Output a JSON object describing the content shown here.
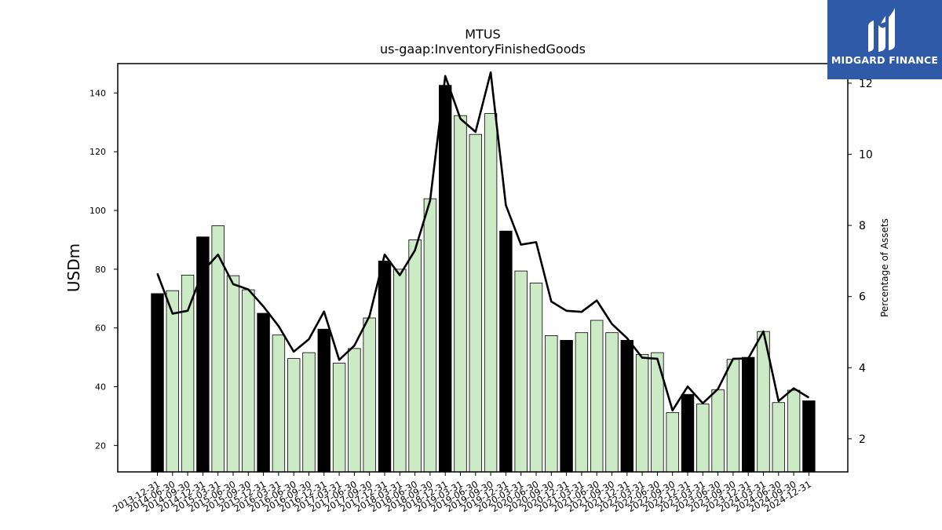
{
  "chart_data": {
    "type": "bar",
    "title": "MTUS",
    "subtitle": "us-gaap:InventoryFinishedGoods",
    "ylabel": "USDm",
    "y2label": "Percentage of Assets",
    "ylim": [
      11,
      150
    ],
    "y2lim": [
      1.07,
      12.55
    ],
    "yticks": [
      20,
      40,
      60,
      80,
      100,
      120,
      140
    ],
    "y2ticks": [
      2,
      4,
      6,
      8,
      10,
      12
    ],
    "categories": [
      "2013-12-31",
      "2014-06-30",
      "2014-09-30",
      "2014-12-31",
      "2015-03-31",
      "2015-06-30",
      "2015-09-30",
      "2015-12-31",
      "2016-03-31",
      "2016-06-30",
      "2016-09-30",
      "2016-12-31",
      "2017-03-31",
      "2017-06-30",
      "2017-09-30",
      "2017-12-31",
      "2018-03-31",
      "2018-06-30",
      "2018-09-30",
      "2018-12-31",
      "2019-03-31",
      "2019-06-30",
      "2019-09-30",
      "2019-12-31",
      "2020-03-31",
      "2020-06-30",
      "2020-09-30",
      "2020-12-31",
      "2021-03-31",
      "2021-06-30",
      "2021-09-30",
      "2021-12-31",
      "2022-03-31",
      "2022-06-30",
      "2022-09-30",
      "2022-12-31",
      "2023-03-31",
      "2023-06-30",
      "2023-09-30",
      "2023-12-31",
      "2024-03-31",
      "2024-06-30",
      "2024-09-30",
      "2024-12-31"
    ],
    "series": [
      {
        "type": "bar",
        "values": [
          71.7,
          72.7,
          78.0,
          91.0,
          94.8,
          77.8,
          73.0,
          65.0,
          57.6,
          49.6,
          51.6,
          59.6,
          48.0,
          53.0,
          63.4,
          82.8,
          80.0,
          90.0,
          104.0,
          142.6,
          132.3,
          125.9,
          133.0,
          93.0,
          79.4,
          75.3,
          57.4,
          55.8,
          58.4,
          62.6,
          58.4,
          55.8,
          51.0,
          51.6,
          31.2,
          37.4,
          34.1,
          39.0,
          49.3,
          50.0,
          58.8,
          34.6,
          38.8,
          35.2
        ],
        "colors": {
          "year_end": "#000000",
          "quarter": "#cdeac6",
          "edge": "#000000"
        }
      },
      {
        "type": "line",
        "axis": "right",
        "color": "#000000",
        "values": [
          6.65,
          5.52,
          5.6,
          6.71,
          7.18,
          6.35,
          6.2,
          5.72,
          5.17,
          4.45,
          4.8,
          5.58,
          4.22,
          4.62,
          5.45,
          7.18,
          6.6,
          7.3,
          8.7,
          12.2,
          11.0,
          10.63,
          12.3,
          8.57,
          7.46,
          7.53,
          5.86,
          5.6,
          5.57,
          5.89,
          5.23,
          4.83,
          4.28,
          4.25,
          2.8,
          3.47,
          3.0,
          3.4,
          4.25,
          4.26,
          5.02,
          3.06,
          3.42,
          3.16
        ]
      }
    ],
    "logo_text": "MIDGARD FINANCE"
  }
}
